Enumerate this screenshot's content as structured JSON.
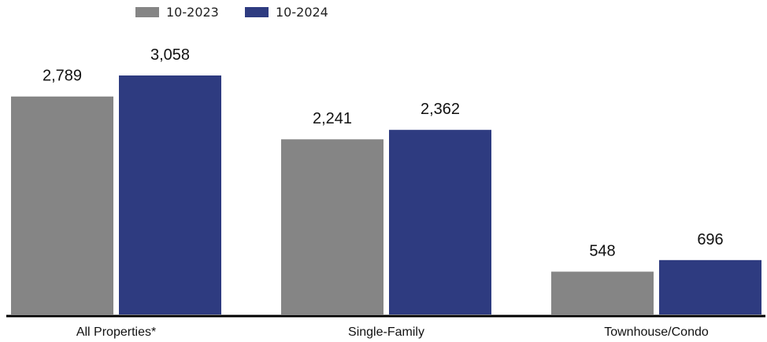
{
  "chart_data": {
    "type": "bar",
    "categories": [
      "All Properties*",
      "Single-Family",
      "Townhouse/Condo"
    ],
    "series": [
      {
        "name": "10-2023",
        "color": "#858585",
        "values": [
          2789,
          2241,
          548
        ]
      },
      {
        "name": "10-2024",
        "color": "#2e3b80",
        "values": [
          3058,
          2362,
          696
        ]
      }
    ],
    "value_labels": [
      [
        "2,789",
        "2,241",
        "548"
      ],
      [
        "3,058",
        "2,362",
        "696"
      ]
    ],
    "ylim": [
      0,
      3500
    ],
    "grid": false,
    "legend_position": "top-left",
    "axis_color": "#000000"
  }
}
